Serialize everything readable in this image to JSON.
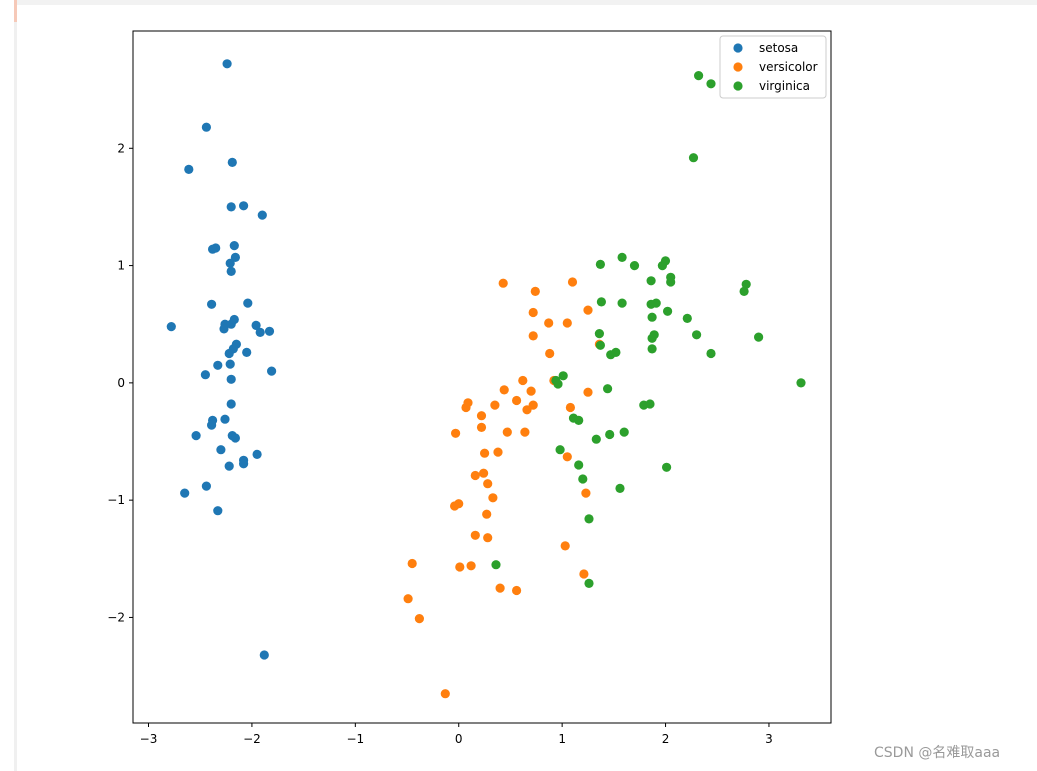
{
  "watermark": "CSDN @名难取aaa",
  "chart_data": {
    "type": "scatter",
    "xlim": [
      -3.15,
      3.6
    ],
    "ylim": [
      -2.9,
      3.0
    ],
    "xticks": [
      -3,
      -2,
      -1,
      0,
      1,
      2,
      3
    ],
    "yticks": [
      -2,
      -1,
      0,
      1,
      2
    ],
    "xtick_labels": [
      "−3",
      "−2",
      "−1",
      "0",
      "1",
      "2",
      "3"
    ],
    "ytick_labels": [
      "−2",
      "−1",
      "0",
      "1",
      "2"
    ],
    "grid": false,
    "legend_placement": "top-right",
    "series": [
      {
        "name": "setosa",
        "color": "#1f77b4",
        "points": [
          [
            -2.24,
            2.72
          ],
          [
            -2.44,
            2.18
          ],
          [
            -2.61,
            1.82
          ],
          [
            -2.19,
            1.88
          ],
          [
            -2.08,
            1.51
          ],
          [
            -2.2,
            1.5
          ],
          [
            -1.9,
            1.43
          ],
          [
            -2.35,
            1.15
          ],
          [
            -2.38,
            1.14
          ],
          [
            -2.17,
            1.17
          ],
          [
            -2.16,
            1.07
          ],
          [
            -2.21,
            1.02
          ],
          [
            -2.2,
            0.95
          ],
          [
            -2.04,
            0.68
          ],
          [
            -2.39,
            0.67
          ],
          [
            -2.26,
            0.5
          ],
          [
            -2.2,
            0.5
          ],
          [
            -2.17,
            0.54
          ],
          [
            -2.27,
            0.46
          ],
          [
            -1.96,
            0.49
          ],
          [
            -1.92,
            0.43
          ],
          [
            -1.83,
            0.44
          ],
          [
            -2.78,
            0.48
          ],
          [
            -2.15,
            0.33
          ],
          [
            -2.18,
            0.29
          ],
          [
            -2.05,
            0.26
          ],
          [
            -2.22,
            0.25
          ],
          [
            -2.33,
            0.15
          ],
          [
            -2.21,
            0.16
          ],
          [
            -1.81,
            0.1
          ],
          [
            -2.45,
            0.07
          ],
          [
            -2.2,
            0.03
          ],
          [
            -2.2,
            -0.18
          ],
          [
            -2.38,
            -0.32
          ],
          [
            -2.26,
            -0.31
          ],
          [
            -2.39,
            -0.36
          ],
          [
            -2.54,
            -0.45
          ],
          [
            -2.19,
            -0.45
          ],
          [
            -2.16,
            -0.47
          ],
          [
            -2.3,
            -0.57
          ],
          [
            -1.95,
            -0.61
          ],
          [
            -2.08,
            -0.66
          ],
          [
            -2.08,
            -0.69
          ],
          [
            -2.22,
            -0.71
          ],
          [
            -2.44,
            -0.88
          ],
          [
            -2.65,
            -0.94
          ],
          [
            -2.33,
            -1.09
          ],
          [
            -1.88,
            -2.32
          ]
        ]
      },
      {
        "name": "versicolor",
        "color": "#ff7f0e",
        "points": [
          [
            0.43,
            0.85
          ],
          [
            1.1,
            0.86
          ],
          [
            0.74,
            0.78
          ],
          [
            1.25,
            0.62
          ],
          [
            0.72,
            0.6
          ],
          [
            0.87,
            0.51
          ],
          [
            1.05,
            0.51
          ],
          [
            0.72,
            0.4
          ],
          [
            1.36,
            0.33
          ],
          [
            0.88,
            0.25
          ],
          [
            0.92,
            0.02
          ],
          [
            0.62,
            0.02
          ],
          [
            0.7,
            -0.07
          ],
          [
            0.44,
            -0.06
          ],
          [
            1.25,
            -0.08
          ],
          [
            0.56,
            -0.15
          ],
          [
            0.07,
            -0.21
          ],
          [
            0.09,
            -0.17
          ],
          [
            0.35,
            -0.19
          ],
          [
            0.72,
            -0.19
          ],
          [
            0.66,
            -0.23
          ],
          [
            1.08,
            -0.21
          ],
          [
            0.22,
            -0.28
          ],
          [
            0.22,
            -0.38
          ],
          [
            -0.03,
            -0.43
          ],
          [
            0.47,
            -0.42
          ],
          [
            0.64,
            -0.42
          ],
          [
            0.25,
            -0.6
          ],
          [
            0.38,
            -0.59
          ],
          [
            1.05,
            -0.63
          ],
          [
            0.16,
            -0.79
          ],
          [
            0.24,
            -0.77
          ],
          [
            0.28,
            -0.86
          ],
          [
            0.33,
            -0.98
          ],
          [
            1.23,
            -0.94
          ],
          [
            0.0,
            -1.03
          ],
          [
            -0.04,
            -1.05
          ],
          [
            0.27,
            -1.12
          ],
          [
            0.16,
            -1.3
          ],
          [
            0.28,
            -1.32
          ],
          [
            1.03,
            -1.39
          ],
          [
            -0.45,
            -1.54
          ],
          [
            0.01,
            -1.57
          ],
          [
            0.12,
            -1.56
          ],
          [
            1.21,
            -1.63
          ],
          [
            0.4,
            -1.75
          ],
          [
            0.56,
            -1.77
          ],
          [
            -0.49,
            -1.84
          ],
          [
            -0.38,
            -2.01
          ],
          [
            -0.13,
            -2.65
          ]
        ]
      },
      {
        "name": "virginica",
        "color": "#2ca02c",
        "points": [
          [
            2.32,
            2.62
          ],
          [
            2.44,
            2.55
          ],
          [
            2.27,
            1.92
          ],
          [
            1.58,
            1.07
          ],
          [
            2.0,
            1.04
          ],
          [
            1.37,
            1.01
          ],
          [
            1.7,
            1.0
          ],
          [
            1.97,
            1.0
          ],
          [
            2.05,
            0.9
          ],
          [
            2.05,
            0.86
          ],
          [
            1.86,
            0.87
          ],
          [
            2.78,
            0.84
          ],
          [
            2.76,
            0.78
          ],
          [
            1.38,
            0.69
          ],
          [
            1.58,
            0.68
          ],
          [
            1.86,
            0.67
          ],
          [
            1.91,
            0.68
          ],
          [
            2.02,
            0.61
          ],
          [
            1.87,
            0.56
          ],
          [
            2.21,
            0.55
          ],
          [
            1.36,
            0.42
          ],
          [
            1.89,
            0.41
          ],
          [
            2.3,
            0.41
          ],
          [
            1.87,
            0.38
          ],
          [
            2.9,
            0.39
          ],
          [
            1.37,
            0.32
          ],
          [
            1.87,
            0.29
          ],
          [
            1.47,
            0.24
          ],
          [
            1.52,
            0.26
          ],
          [
            2.44,
            0.25
          ],
          [
            1.01,
            0.06
          ],
          [
            0.94,
            0.02
          ],
          [
            0.96,
            -0.01
          ],
          [
            1.44,
            -0.05
          ],
          [
            3.31,
            -0.0
          ],
          [
            1.79,
            -0.19
          ],
          [
            1.85,
            -0.18
          ],
          [
            1.11,
            -0.3
          ],
          [
            1.16,
            -0.32
          ],
          [
            1.6,
            -0.42
          ],
          [
            1.46,
            -0.44
          ],
          [
            1.33,
            -0.48
          ],
          [
            0.98,
            -0.57
          ],
          [
            1.16,
            -0.7
          ],
          [
            2.01,
            -0.72
          ],
          [
            1.2,
            -0.82
          ],
          [
            1.56,
            -0.9
          ],
          [
            1.26,
            -1.16
          ],
          [
            0.36,
            -1.55
          ],
          [
            1.26,
            -1.71
          ]
        ]
      }
    ]
  }
}
